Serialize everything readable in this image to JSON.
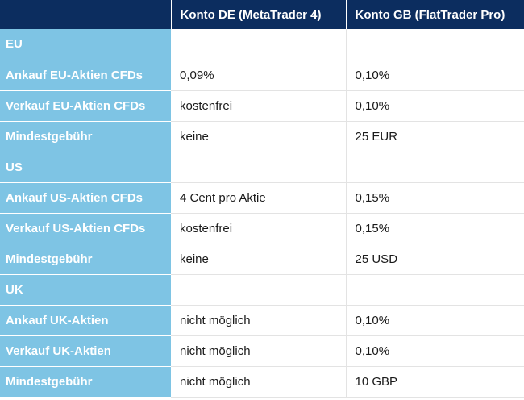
{
  "table": {
    "headers": [
      "",
      "Konto DE (MetaTrader 4)",
      "Konto GB (FlatTrader Pro)"
    ],
    "rows": [
      {
        "type": "section",
        "label": "EU",
        "de": "",
        "gb": ""
      },
      {
        "type": "row",
        "label": "Ankauf EU-Aktien CFDs",
        "de": "0,09%",
        "gb": "0,10%"
      },
      {
        "type": "row",
        "label": "Verkauf EU-Aktien CFDs",
        "de": "kostenfrei",
        "gb": "0,10%"
      },
      {
        "type": "row",
        "label": "Mindestgebühr",
        "de": "keine",
        "gb": "25 EUR"
      },
      {
        "type": "section",
        "label": "US",
        "de": "",
        "gb": ""
      },
      {
        "type": "row",
        "label": "Ankauf US-Aktien CFDs",
        "de": "4 Cent pro Aktie",
        "gb": "0,15%"
      },
      {
        "type": "row",
        "label": "Verkauf US-Aktien CFDs",
        "de": "kostenfrei",
        "gb": "0,15%"
      },
      {
        "type": "row",
        "label": "Mindestgebühr",
        "de": "keine",
        "gb": "25 USD"
      },
      {
        "type": "section",
        "label": "UK",
        "de": "",
        "gb": ""
      },
      {
        "type": "row",
        "label": "Ankauf UK-Aktien",
        "de": "nicht möglich",
        "gb": "0,10%"
      },
      {
        "type": "row",
        "label": "Verkauf UK-Aktien",
        "de": "nicht möglich",
        "gb": "0,10%"
      },
      {
        "type": "row",
        "label": "Mindestgebühr",
        "de": "nicht möglich",
        "gb": "10 GBP"
      }
    ]
  },
  "colors": {
    "header_bg": "#0c2d5f",
    "label_bg": "#7ec4e4",
    "cell_bg": "#ffffff"
  }
}
